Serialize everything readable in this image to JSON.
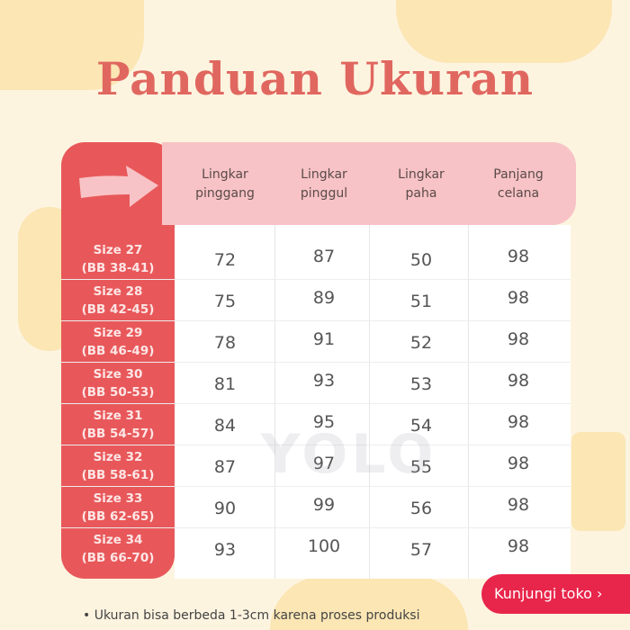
{
  "title": "Panduan Ukuran",
  "headers": [
    "Lingkar\npinggang",
    "Lingkar\npinggul",
    "Lingkar\npaha",
    "Panjang\ncelana"
  ],
  "rows": [
    {
      "size": "Size 27",
      "bb": "(BB 38-41)",
      "values": [
        "72",
        "87",
        "50",
        "98"
      ]
    },
    {
      "size": "Size 28",
      "bb": "(BB 42-45)",
      "values": [
        "75",
        "89",
        "51",
        "98"
      ]
    },
    {
      "size": "Size 29",
      "bb": "(BB 46-49)",
      "values": [
        "78",
        "91",
        "52",
        "98"
      ]
    },
    {
      "size": "Size 30",
      "bb": "(BB 50-53)",
      "values": [
        "81",
        "93",
        "53",
        "98"
      ]
    },
    {
      "size": "Size 31",
      "bb": "(BB 54-57)",
      "values": [
        "84",
        "95",
        "54",
        "98"
      ]
    },
    {
      "size": "Size 32",
      "bb": "(BB 58-61)",
      "values": [
        "87",
        "97",
        "55",
        "98"
      ]
    },
    {
      "size": "Size 33",
      "bb": "(BB 62-65)",
      "values": [
        "90",
        "99",
        "56",
        "98"
      ]
    },
    {
      "size": "Size 34",
      "bb": "(BB 66-70)",
      "values": [
        "93",
        "100",
        "57",
        "98"
      ]
    }
  ],
  "note": "• Ukuran bisa berbeda 1-3cm karena proses produksi",
  "visit_button": "Kunjungi toko  ›",
  "watermark": "YOLO STORE",
  "colors": {
    "title": "#e0675f",
    "size_column": "#e8585a",
    "header": "#f8c3c6",
    "button": "#e8254a"
  }
}
